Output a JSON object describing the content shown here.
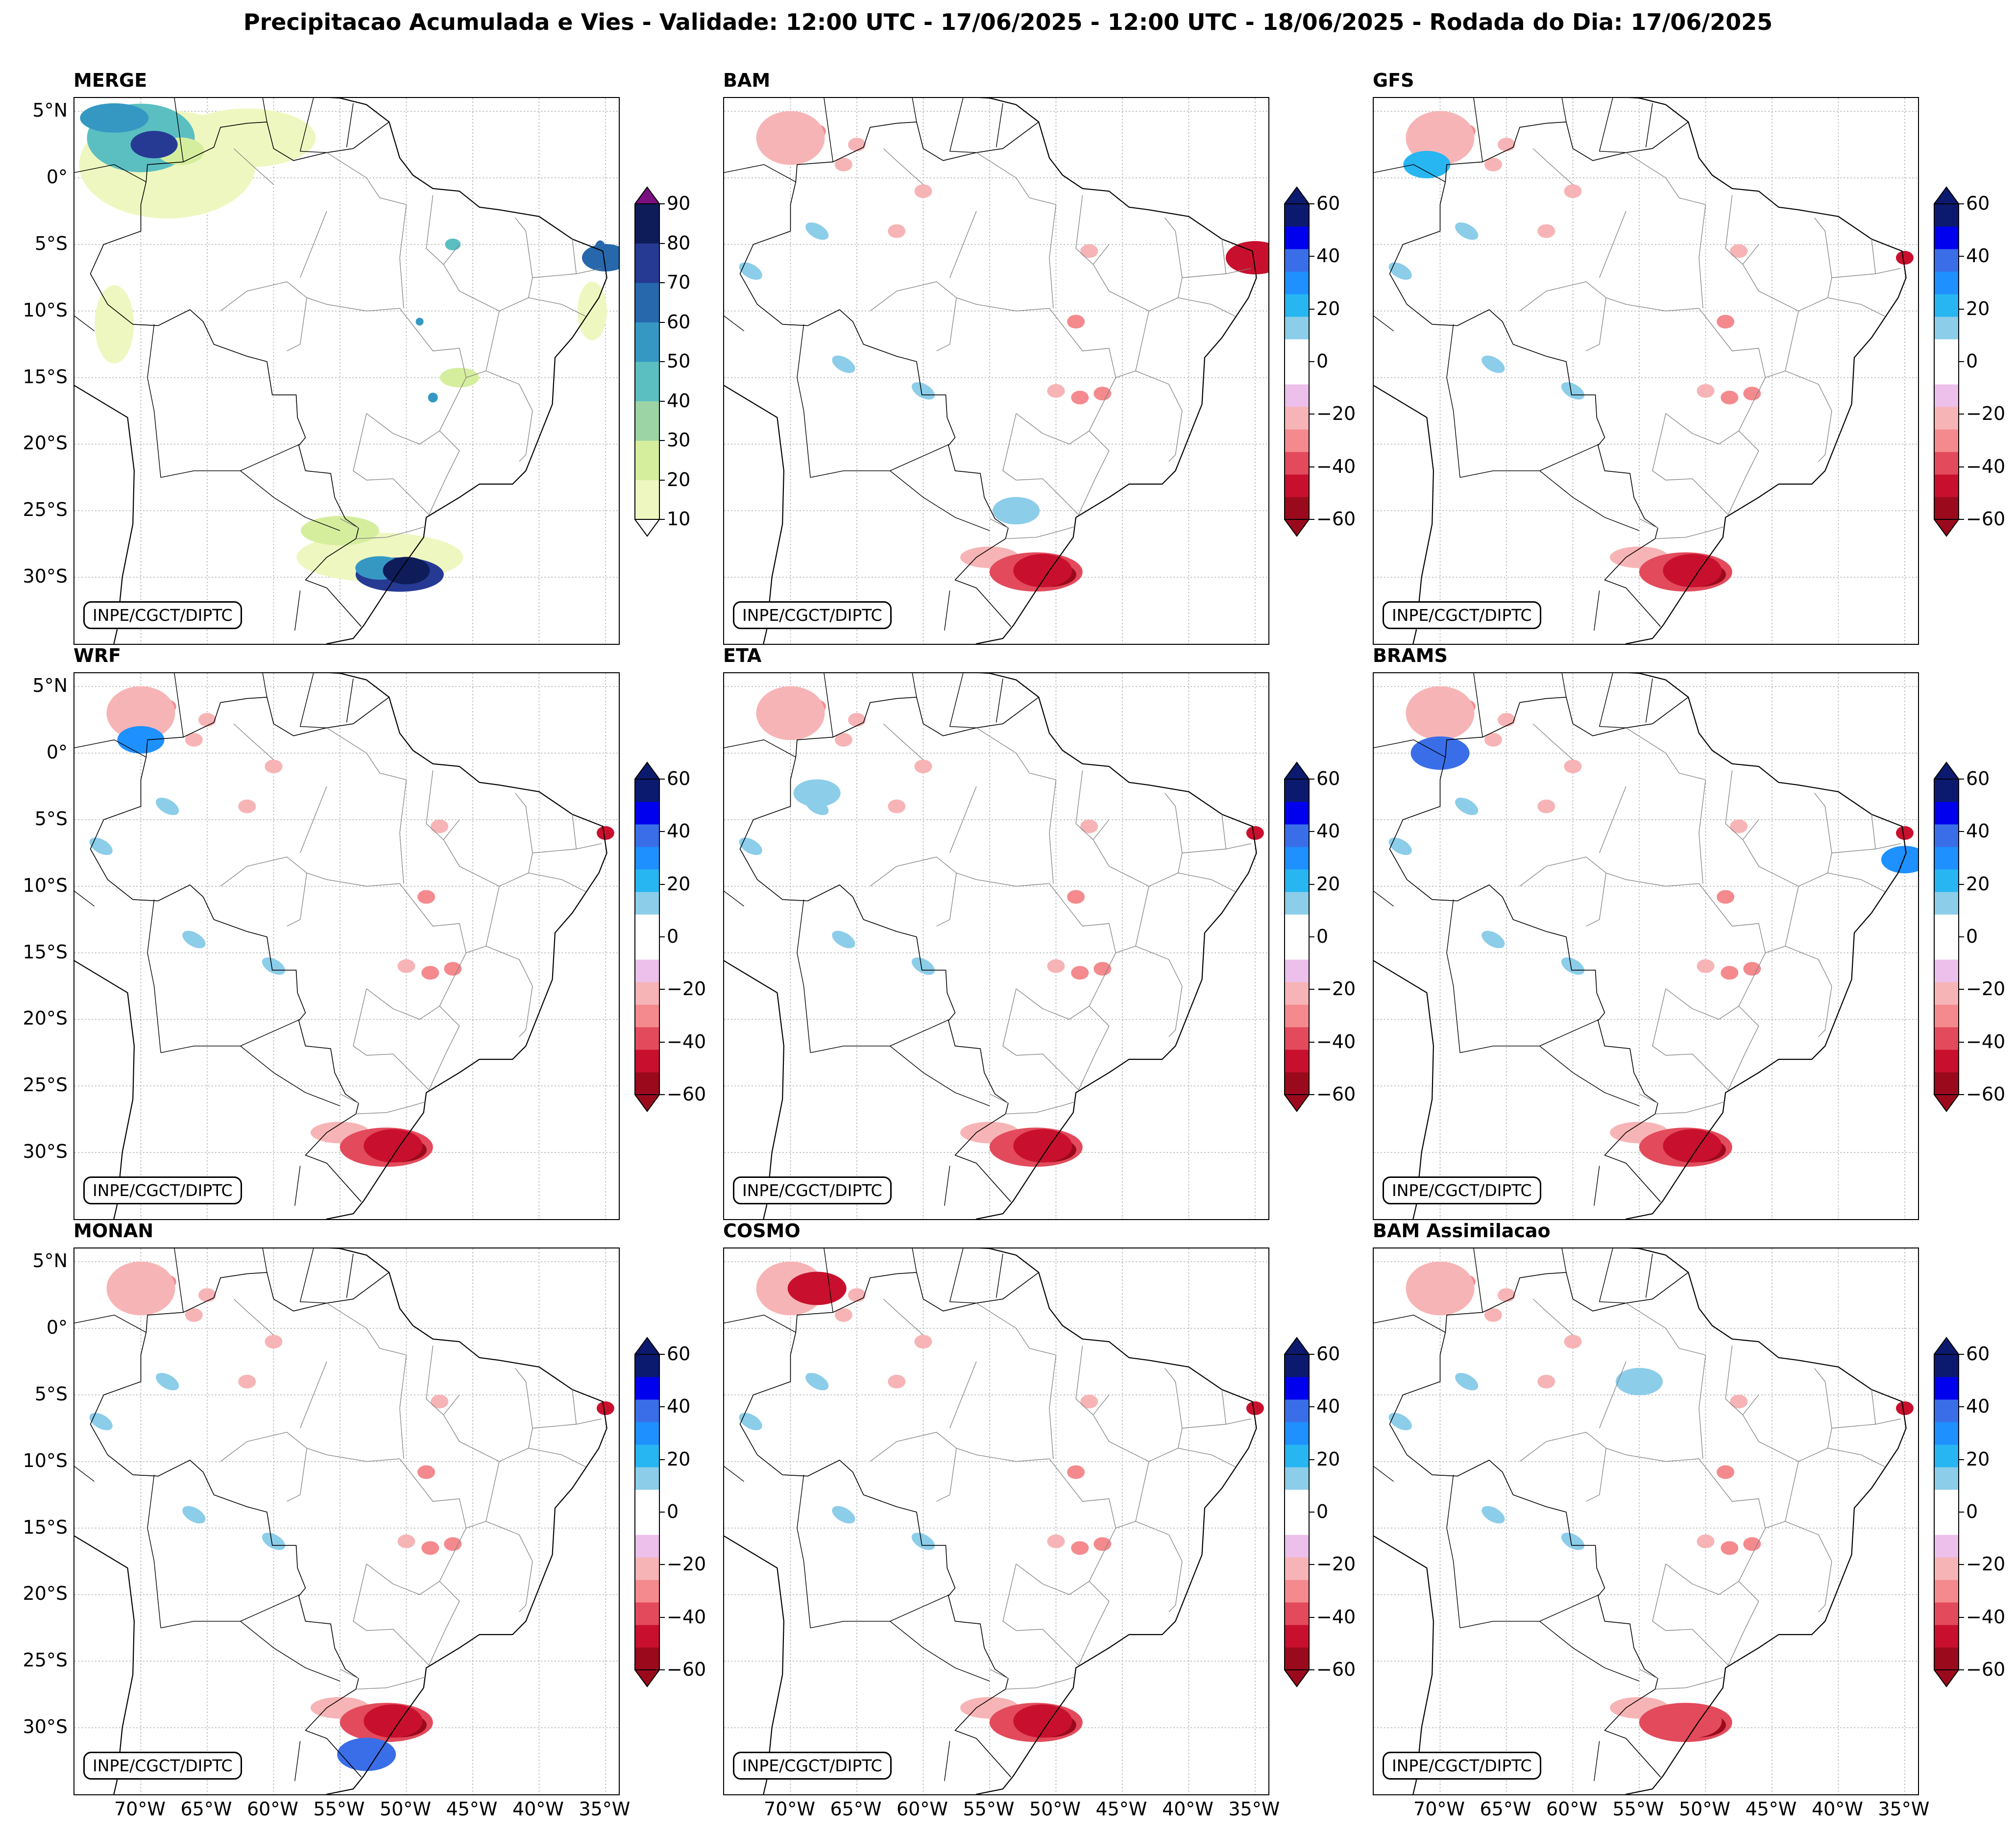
{
  "title": "Precipitacao Acumulada e Vies - Validade: 12:00 UTC - 17/06/2025 - 12:00 UTC - 18/06/2025 - Rodada do Dia: 17/06/2025",
  "credit": "INPE/CGCT/DIPTC",
  "lat_ticks": [
    "5°N",
    "0°",
    "5°S",
    "10°S",
    "15°S",
    "20°S",
    "25°S",
    "30°S"
  ],
  "lon_ticks": [
    "70°W",
    "65°W",
    "60°W",
    "55°W",
    "50°W",
    "45°W",
    "40°W",
    "35°W"
  ],
  "colors": {
    "precip": [
      "#eff7c0",
      "#d5ee9e",
      "#9cd4a5",
      "#5bbfc2",
      "#3598c3",
      "#2768ad",
      "#263a94",
      "#0e1d5a",
      "#7a0f80"
    ],
    "bias_neg": [
      "#9a0a1c",
      "#c8102e",
      "#e34a5c",
      "#f48a8e",
      "#f7b4b6",
      "#ecc0ea"
    ],
    "bias_pos": [
      "#8ccde9",
      "#27b6f1",
      "#1e90ff",
      "#3a6ee8",
      "#0000ee",
      "#0b1a6e"
    ]
  },
  "chart_data": {
    "type": "map-grid",
    "region": "Brazil / South America",
    "lat_range": [
      -35,
      6
    ],
    "lon_range": [
      -75,
      -34
    ],
    "panels": [
      {
        "name": "MERGE",
        "variable": "accumulated precipitation (mm)",
        "colorbar_ticks": [
          10,
          20,
          30,
          40,
          50,
          60,
          70,
          80,
          90
        ],
        "colorbar_min": 10,
        "colorbar_max": 90,
        "extend": "both",
        "features": [
          {
            "kind": "precip",
            "value": 25,
            "lon": -67,
            "lat": 2
          },
          {
            "kind": "precip",
            "value": 75,
            "lon": -69,
            "lat": 2.5
          },
          {
            "kind": "precip",
            "value": 80,
            "lon": -50,
            "lat": -29.5
          },
          {
            "kind": "precip",
            "value": 60,
            "lon": -35,
            "lat": -6
          }
        ]
      },
      {
        "name": "BAM",
        "variable": "bias (mm)",
        "colorbar_ticks": [
          -60,
          -40,
          -20,
          0,
          20,
          40,
          60
        ],
        "colorbar_min": -60,
        "colorbar_max": 60,
        "extend": "both",
        "features": [
          {
            "kind": "bias",
            "value": -50,
            "lon": -51,
            "lat": -29.5
          },
          {
            "kind": "bias",
            "value": 15,
            "lon": -53,
            "lat": -25
          },
          {
            "kind": "bias",
            "value": -45,
            "lon": -35,
            "lat": -6
          }
        ]
      },
      {
        "name": "GFS",
        "variable": "bias (mm)",
        "colorbar_ticks": [
          -60,
          -40,
          -20,
          0,
          20,
          40,
          60
        ],
        "colorbar_min": -60,
        "colorbar_max": 60,
        "extend": "both",
        "features": [
          {
            "kind": "bias",
            "value": -50,
            "lon": -51,
            "lat": -29.5
          },
          {
            "kind": "bias",
            "value": 20,
            "lon": -71,
            "lat": 1
          }
        ]
      },
      {
        "name": "WRF",
        "variable": "bias (mm)",
        "colorbar_ticks": [
          -60,
          -40,
          -20,
          0,
          20,
          40,
          60
        ],
        "colorbar_min": -60,
        "colorbar_max": 60,
        "extend": "both",
        "features": [
          {
            "kind": "bias",
            "value": -50,
            "lon": -51,
            "lat": -29.5
          },
          {
            "kind": "bias",
            "value": 30,
            "lon": -70,
            "lat": 1
          }
        ]
      },
      {
        "name": "ETA",
        "variable": "bias (mm)",
        "colorbar_ticks": [
          -60,
          -40,
          -20,
          0,
          20,
          40,
          60
        ],
        "colorbar_min": -60,
        "colorbar_max": 60,
        "extend": "both",
        "features": [
          {
            "kind": "bias",
            "value": -50,
            "lon": -51,
            "lat": -29.5
          },
          {
            "kind": "bias",
            "value": 15,
            "lon": -68,
            "lat": -3
          }
        ]
      },
      {
        "name": "BRAMS",
        "variable": "bias (mm)",
        "colorbar_ticks": [
          -60,
          -40,
          -20,
          0,
          20,
          40,
          60
        ],
        "colorbar_min": -60,
        "colorbar_max": 60,
        "extend": "both",
        "features": [
          {
            "kind": "bias",
            "value": -50,
            "lon": -51,
            "lat": -29.5
          },
          {
            "kind": "bias",
            "value": 40,
            "lon": -70,
            "lat": 0
          },
          {
            "kind": "bias",
            "value": 30,
            "lon": -35,
            "lat": -8
          }
        ]
      },
      {
        "name": "MONAN",
        "variable": "bias (mm)",
        "colorbar_ticks": [
          -60,
          -40,
          -20,
          0,
          20,
          40,
          60
        ],
        "colorbar_min": -60,
        "colorbar_max": 60,
        "extend": "both",
        "features": [
          {
            "kind": "bias",
            "value": -50,
            "lon": -51,
            "lat": -29.5
          },
          {
            "kind": "bias",
            "value": 45,
            "lon": -53,
            "lat": -32
          }
        ]
      },
      {
        "name": "COSMO",
        "variable": "bias (mm)",
        "colorbar_ticks": [
          -60,
          -40,
          -20,
          0,
          20,
          40,
          60
        ],
        "colorbar_min": -60,
        "colorbar_max": 60,
        "extend": "both",
        "features": [
          {
            "kind": "bias",
            "value": -50,
            "lon": -51,
            "lat": -29.5
          },
          {
            "kind": "bias",
            "value": -45,
            "lon": -68,
            "lat": 3
          }
        ]
      },
      {
        "name": "BAM Assimilacao",
        "variable": "bias (mm)",
        "colorbar_ticks": [
          -60,
          -40,
          -20,
          0,
          20,
          40,
          60
        ],
        "colorbar_min": -60,
        "colorbar_max": 60,
        "extend": "both",
        "features": [
          {
            "kind": "bias",
            "value": -40,
            "lon": -51,
            "lat": -29.5
          },
          {
            "kind": "bias",
            "value": 15,
            "lon": -55,
            "lat": -4
          }
        ]
      }
    ]
  }
}
